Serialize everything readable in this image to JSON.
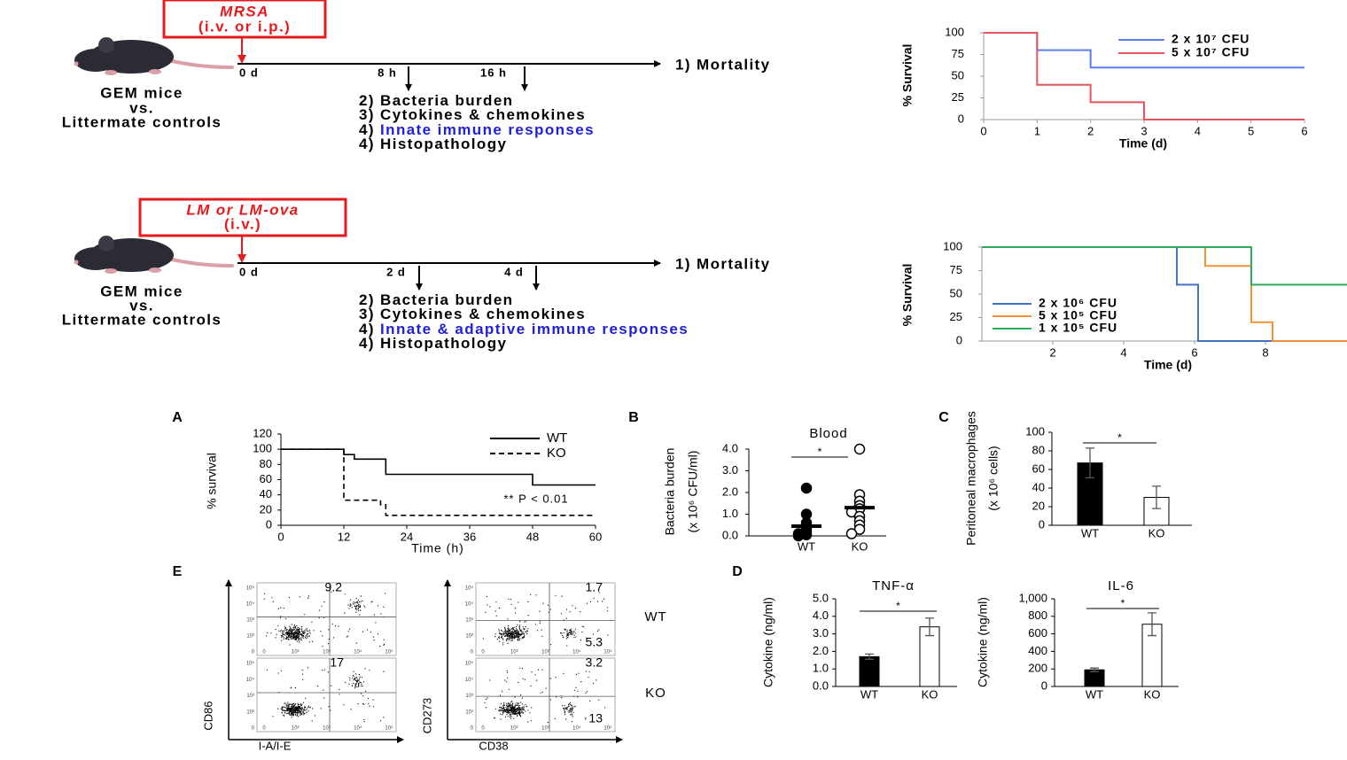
{
  "diagrams": [
    {
      "route": [
        "MRSA",
        "(i.v. or i.p.)"
      ],
      "mouse": [
        "GEM mice",
        "vs.",
        "Littermate controls"
      ],
      "start": "0 d",
      "timepoints": [
        "8 h",
        "16 h"
      ],
      "endpoint": "1) Mortality",
      "readouts": [
        {
          "label": "2) Bacteria burden"
        },
        {
          "label": "3) Cytokines & chemokines"
        },
        {
          "label": "4)",
          "text": "Innate immune responses",
          "color": "#1f1fd6"
        },
        {
          "label": "4) Histopathology"
        }
      ]
    },
    {
      "route": [
        "LM or LM-ova",
        "(i.v.)"
      ],
      "mouse": [
        "GEM mice",
        "vs.",
        "Littermate controls"
      ],
      "start": "0 d",
      "timepoints": [
        "2 d",
        "4 d"
      ],
      "endpoint": "1) Mortality",
      "readouts": [
        {
          "label": "2) Bacteria burden"
        },
        {
          "label": "3) Cytokines & chemokines"
        },
        {
          "label": "4)",
          "text": "Innate & adaptive immune responses",
          "color": "#1f1fd6"
        },
        {
          "label": "4) Histopathology"
        }
      ]
    }
  ],
  "chart_data": [
    {
      "type": "step",
      "ylabel": "% Survival",
      "xlabel": "Time (d)",
      "xlim": [
        0,
        6
      ],
      "xticks": [
        0,
        1,
        2,
        3,
        4,
        5,
        6
      ],
      "ylim": [
        0,
        100
      ],
      "yticks": [
        0,
        25,
        50,
        75,
        100
      ],
      "legend": "upper right",
      "series": [
        {
          "name": "2 x 10⁷ CFU",
          "color": "#5b7ee5",
          "x": [
            0,
            1,
            2,
            6
          ],
          "values": [
            100,
            80,
            60,
            60
          ]
        },
        {
          "name": "5 x 10⁷ CFU",
          "color": "#e8545e",
          "x": [
            0,
            1,
            2,
            3,
            6
          ],
          "values": [
            100,
            40,
            20,
            0,
            0
          ]
        }
      ]
    },
    {
      "type": "step",
      "ylabel": "% Survival",
      "xlabel": "Time (d)",
      "xlim": [
        0,
        10.3
      ],
      "xticks": [
        2,
        4,
        6,
        8
      ],
      "ylim": [
        0,
        100
      ],
      "yticks": [
        0,
        25,
        50,
        75,
        100
      ],
      "legend": "lower left",
      "series": [
        {
          "name": "2 x 10⁶ CFU",
          "color": "#4472c4",
          "x": [
            0,
            5.5,
            6.1,
            10.3
          ],
          "values": [
            100,
            60,
            0,
            0
          ]
        },
        {
          "name": "5 x 10⁵ CFU",
          "color": "#f0913a",
          "x": [
            0,
            6.3,
            7.6,
            8.2,
            10.3
          ],
          "values": [
            100,
            80,
            20,
            0,
            0
          ]
        },
        {
          "name": "1 x 10⁵ CFU",
          "color": "#2eaa5b",
          "x": [
            0,
            7.6,
            10.3
          ],
          "values": [
            100,
            60,
            60
          ]
        }
      ]
    },
    {
      "type": "step",
      "panel": "A",
      "ylabel": "% survival",
      "xlabel": "Time (h)",
      "xlim": [
        0,
        60
      ],
      "xticks": [
        0,
        12,
        24,
        36,
        48,
        60
      ],
      "ylim": [
        0,
        120
      ],
      "yticks": [
        0,
        20,
        40,
        60,
        80,
        100,
        120
      ],
      "legend": "upper right",
      "annotation": "** P < 0.01",
      "series": [
        {
          "name": "WT",
          "color": "#000000",
          "x": [
            0,
            12,
            14,
            20,
            48,
            60
          ],
          "values": [
            100,
            93,
            87,
            67,
            53,
            53
          ]
        },
        {
          "name": "KO",
          "color": "#000000",
          "dash": true,
          "x": [
            0,
            12,
            13,
            19,
            20,
            60
          ],
          "values": [
            100,
            33,
            33,
            27,
            13,
            13
          ]
        }
      ]
    },
    {
      "type": "dot",
      "panel": "B",
      "title": "Blood",
      "ylabel": [
        "Bacteria burden",
        "(x 10⁶ CFU/ml)"
      ],
      "categories": [
        "WT",
        "KO"
      ],
      "ylim": [
        0,
        4
      ],
      "yticks": [
        {
          "value": 0,
          "label": "0.0"
        },
        {
          "value": 1,
          "label": "1.0"
        },
        {
          "value": 2,
          "label": "2.0"
        },
        {
          "value": 3,
          "label": "3.0"
        },
        {
          "value": 4,
          "label": "4.0"
        }
      ],
      "points": [
        [
          2.2,
          1.0,
          0.6,
          0.35,
          0.2,
          0.1,
          0.05,
          0.0
        ],
        [
          4.0,
          1.9,
          1.6,
          1.4,
          1.25,
          1.1,
          0.9,
          0.7,
          0.5,
          0.3,
          0.1
        ]
      ],
      "means": [
        0.45,
        1.3
      ],
      "colors": [
        "#000000",
        "#ffffff"
      ],
      "significance": "*"
    },
    {
      "type": "bar",
      "panel": "C",
      "ylabel": [
        "Peritoneal macrophages",
        "(x 10⁶ cells)"
      ],
      "categories": [
        "WT",
        "KO"
      ],
      "values": [
        67,
        30
      ],
      "errors": [
        16,
        12
      ],
      "colors": [
        "#000000",
        "#ffffff"
      ],
      "ylim": [
        0,
        100
      ],
      "yticks": [
        0,
        20,
        40,
        60,
        80,
        100
      ],
      "significance": "*"
    },
    {
      "type": "bar",
      "panel": "D",
      "title": "TNF-α",
      "ylabel": [
        "Cytokine (ng/ml)"
      ],
      "categories": [
        "WT",
        "KO"
      ],
      "values": [
        1.7,
        3.4
      ],
      "errors": [
        0.15,
        0.5
      ],
      "colors": [
        "#000000",
        "#ffffff"
      ],
      "ylim": [
        0,
        5
      ],
      "yticks": [
        {
          "value": 0,
          "label": "0.0"
        },
        {
          "value": 1,
          "label": "1.0"
        },
        {
          "value": 2,
          "label": "2.0"
        },
        {
          "value": 3,
          "label": "3.0"
        },
        {
          "value": 4,
          "label": "4.0"
        },
        {
          "value": 5,
          "label": "5.0"
        }
      ],
      "significance": "*"
    },
    {
      "type": "bar",
      "title": "IL-6",
      "ylabel": [
        "Cytokine (ng/ml)"
      ],
      "categories": [
        "WT",
        "KO"
      ],
      "values": [
        190,
        710
      ],
      "errors": [
        20,
        130
      ],
      "colors": [
        "#000000",
        "#ffffff"
      ],
      "ylim": [
        0,
        1000
      ],
      "yticks": [
        0,
        200,
        400,
        600,
        800,
        {
          "value": 1000,
          "label": "1,000"
        }
      ],
      "significance": "*"
    }
  ],
  "flow": {
    "panel": "E",
    "row_labels": [
      "WT",
      "KO"
    ],
    "y_ticks": [
      "10⁵",
      "10⁴",
      "10³",
      "10²",
      "0"
    ],
    "x_ticks": [
      "0",
      "10²",
      "10³",
      "10⁴",
      "10⁵"
    ],
    "columns": [
      {
        "xlabel": "I-A/I-E",
        "ylabel": "CD86",
        "values": [
          [
            9.2
          ],
          [
            17
          ]
        ]
      },
      {
        "xlabel": "CD38",
        "ylabel": "CD273",
        "values": [
          [
            1.7,
            5.3
          ],
          [
            3.2,
            13
          ]
        ]
      }
    ]
  }
}
